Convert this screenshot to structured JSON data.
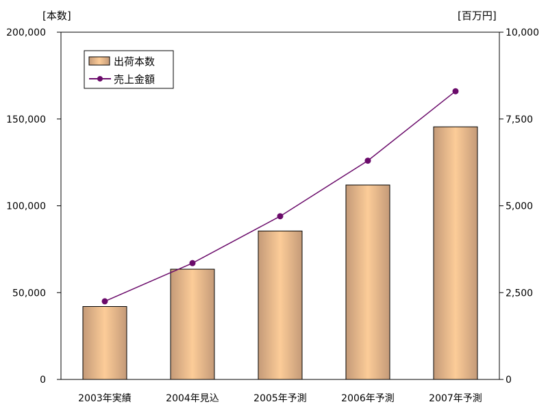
{
  "chart_data": {
    "type": "bar",
    "categories": [
      "2003年実績",
      "2004年見込",
      "2005年予測",
      "2006年予測",
      "2007年予測"
    ],
    "series": [
      {
        "name": "出荷本数",
        "type": "bar",
        "axis": "left",
        "values": [
          42000,
          63500,
          85500,
          112000,
          145500
        ]
      },
      {
        "name": "売上金額",
        "type": "line",
        "axis": "right",
        "values": [
          2250,
          3350,
          4700,
          6300,
          8300
        ]
      }
    ],
    "left_axis": {
      "unit_label": "[本数]",
      "ylim": [
        0,
        200000
      ],
      "ticks": [
        0,
        50000,
        100000,
        150000,
        200000
      ],
      "tick_labels": [
        "0",
        "50,000",
        "100,000",
        "150,000",
        "200,000"
      ]
    },
    "right_axis": {
      "unit_label": "[百万円]",
      "ylim": [
        0,
        10000
      ],
      "ticks": [
        0,
        2500,
        5000,
        7500,
        10000
      ],
      "tick_labels": [
        "0",
        "2,500",
        "5,000",
        "7,500",
        "10,000"
      ]
    },
    "grid": false,
    "legend": {
      "position": "top-left",
      "entries": [
        "出荷本数",
        "売上金額"
      ]
    },
    "colors": {
      "bar_edge": "#c49a78",
      "bar_center": "#fccc98",
      "bar_outline": "#000000",
      "line": "#6a0a6a",
      "marker": "#6a0a6a"
    }
  }
}
